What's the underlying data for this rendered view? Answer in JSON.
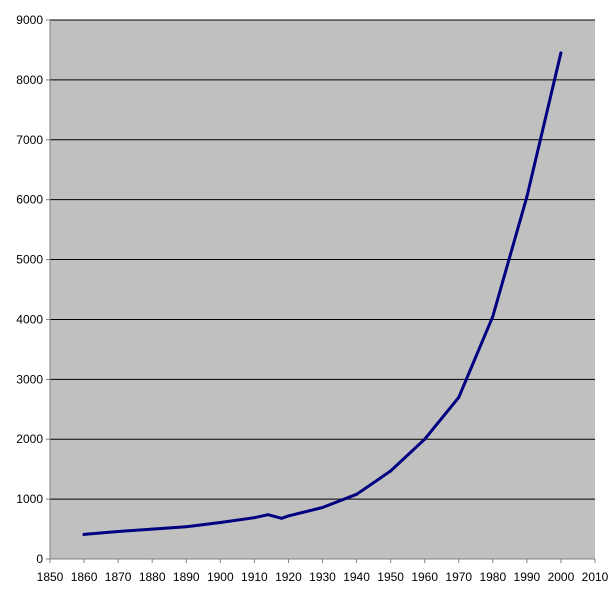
{
  "chart_data": {
    "type": "line",
    "title": "",
    "xlabel": "",
    "ylabel": "",
    "xlim": [
      1850,
      2010
    ],
    "ylim": [
      0,
      9000
    ],
    "x_ticks": [
      "1850",
      "1860",
      "1870",
      "1880",
      "1890",
      "1900",
      "1910",
      "1920",
      "1930",
      "1940",
      "1950",
      "1960",
      "1970",
      "1980",
      "1990",
      "2000",
      "2010"
    ],
    "y_ticks": [
      "0",
      "1000",
      "2000",
      "3000",
      "4000",
      "5000",
      "6000",
      "7000",
      "8000",
      "9000"
    ],
    "grid": "horizontal",
    "legend": "none",
    "colors": {
      "plot_bg": "#C0C0C0",
      "line": "#000080",
      "grid": "#000000",
      "axis": "#808080"
    },
    "series": [
      {
        "x": [
          1860,
          1870,
          1880,
          1890,
          1900,
          1910,
          1914,
          1918,
          1920,
          1930,
          1940,
          1950,
          1960,
          1970,
          1980,
          1990,
          2000
        ],
        "values": [
          410,
          460,
          500,
          540,
          610,
          690,
          740,
          680,
          720,
          860,
          1080,
          1470,
          2000,
          2700,
          4050,
          6050,
          8450
        ]
      }
    ]
  }
}
